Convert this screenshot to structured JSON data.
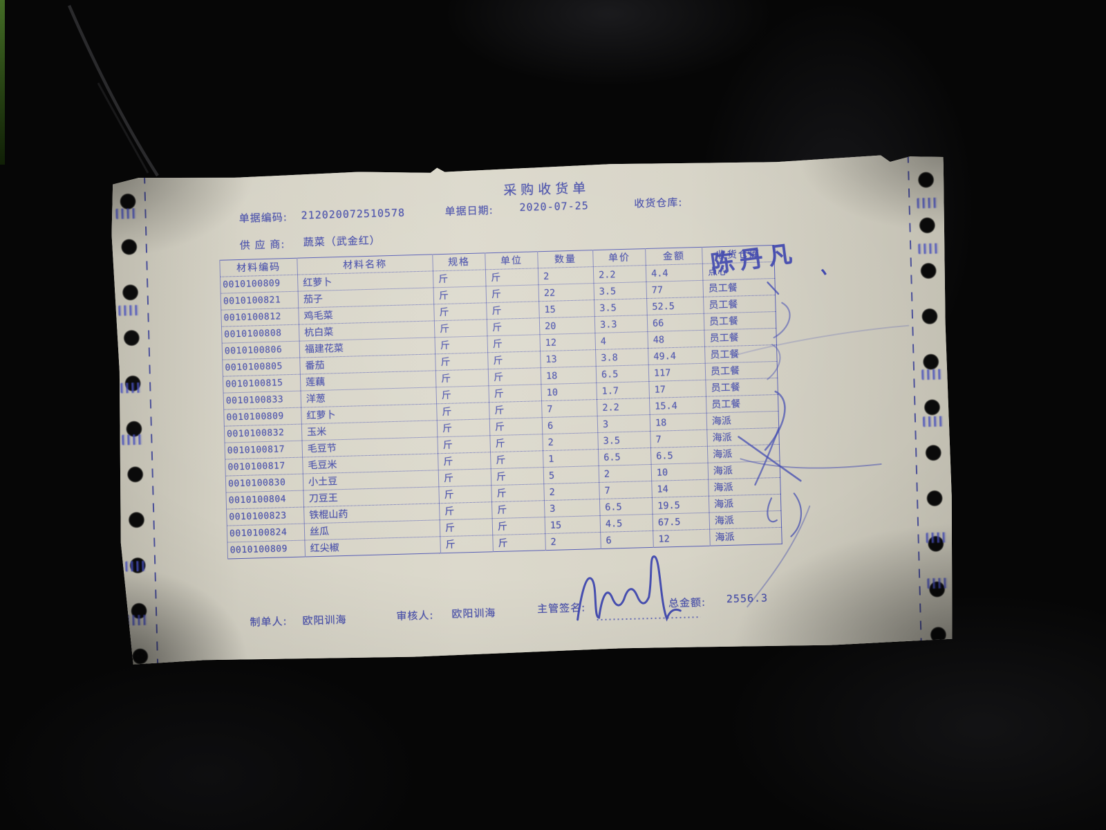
{
  "document": {
    "title": "采购收货单",
    "meta": {
      "doc_code_label": "单据编码:",
      "doc_code": "212020072510578",
      "doc_date_label": "单据日期:",
      "doc_date": "2020-07-25",
      "warehouse_label": "收货仓库:",
      "warehouse_value": "",
      "supplier_label": "供 应 商:",
      "supplier_value": "蔬菜（武金红）"
    },
    "table": {
      "headers": [
        "材料编码",
        "材料名称",
        "规格",
        "单位",
        "数量",
        "单价",
        "金额",
        "收货仓库"
      ],
      "rows": [
        [
          "0010100809",
          "红萝卜",
          "斤",
          "斤",
          "2",
          "2.2",
          "4.4",
          "点心"
        ],
        [
          "0010100821",
          "茄子",
          "斤",
          "斤",
          "22",
          "3.5",
          "77",
          "员工餐"
        ],
        [
          "0010100812",
          "鸡毛菜",
          "斤",
          "斤",
          "15",
          "3.5",
          "52.5",
          "员工餐"
        ],
        [
          "0010100808",
          "杭白菜",
          "斤",
          "斤",
          "20",
          "3.3",
          "66",
          "员工餐"
        ],
        [
          "0010100806",
          "福建花菜",
          "斤",
          "斤",
          "12",
          "4",
          "48",
          "员工餐"
        ],
        [
          "0010100805",
          "番茄",
          "斤",
          "斤",
          "13",
          "3.8",
          "49.4",
          "员工餐"
        ],
        [
          "0010100815",
          "莲藕",
          "斤",
          "斤",
          "18",
          "6.5",
          "117",
          "员工餐"
        ],
        [
          "0010100833",
          "洋葱",
          "斤",
          "斤",
          "10",
          "1.7",
          "17",
          "员工餐"
        ],
        [
          "0010100809",
          "红萝卜",
          "斤",
          "斤",
          "7",
          "2.2",
          "15.4",
          "员工餐"
        ],
        [
          "0010100832",
          "玉米",
          "斤",
          "斤",
          "6",
          "3",
          "18",
          "海派"
        ],
        [
          "0010100817",
          "毛豆节",
          "斤",
          "斤",
          "2",
          "3.5",
          "7",
          "海派"
        ],
        [
          "0010100817",
          "毛豆米",
          "斤",
          "斤",
          "1",
          "6.5",
          "6.5",
          "海派"
        ],
        [
          "0010100830",
          "小土豆",
          "斤",
          "斤",
          "5",
          "2",
          "10",
          "海派"
        ],
        [
          "0010100804",
          "刀豆王",
          "斤",
          "斤",
          "2",
          "7",
          "14",
          "海派"
        ],
        [
          "0010100823",
          "铁棍山药",
          "斤",
          "斤",
          "3",
          "6.5",
          "19.5",
          "海派"
        ],
        [
          "0010100824",
          "丝瓜",
          "斤",
          "斤",
          "15",
          "4.5",
          "67.5",
          "海派"
        ],
        [
          "0010100809",
          "红尖椒",
          "斤",
          "斤",
          "2",
          "6",
          "12",
          "海派"
        ]
      ]
    },
    "footer": {
      "preparer_label": "制单人:",
      "preparer": "欧阳训海",
      "reviewer_label": "审核人:",
      "reviewer": "欧阳训海",
      "signature_label": "主管签名:",
      "total_label": "总金额:",
      "total": "2556.3"
    },
    "annotations": {
      "handwritten_name": "陈丹凡",
      "tick_mark": "、"
    },
    "colors": {
      "print_ink": "#4a51ab",
      "pen_ink": "#3b43ad",
      "paper": "#d2cfc2",
      "background": "#060606"
    }
  }
}
